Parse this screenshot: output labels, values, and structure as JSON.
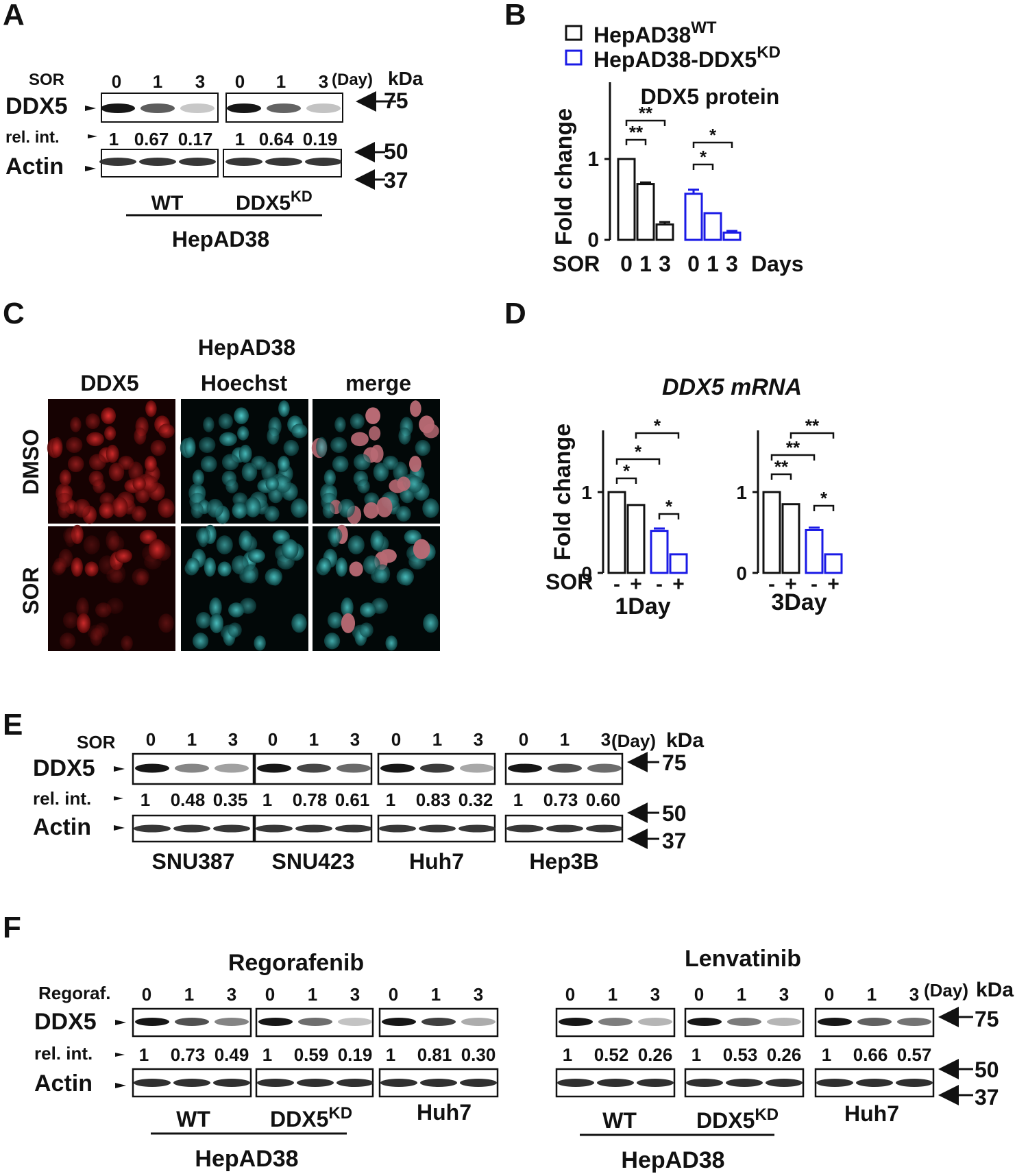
{
  "panels": {
    "A": {
      "letter": "A",
      "treatment_label": "SOR",
      "days": [
        "0",
        "1",
        "3",
        "0",
        "1",
        "3"
      ],
      "day_unit": "(Day)",
      "kda_label": "kDa",
      "protein_label": "DDX5",
      "relint_label": "rel. int.",
      "relint_values": [
        "1",
        "0.67",
        "0.17",
        "1",
        "0.64",
        "0.19"
      ],
      "loading_label": "Actin",
      "markers": [
        "75",
        "50",
        "37"
      ],
      "group_wt": "WT",
      "group_kd": "DDX5",
      "group_kd_sup": "KD",
      "cell_line": "HepAD38",
      "ddx5_band_intensity": [
        1,
        0.67,
        0.17,
        1,
        0.64,
        0.19
      ]
    },
    "B": {
      "letter": "B",
      "legend": [
        {
          "name": "HepAD38",
          "sup": "WT",
          "color": "#111111"
        },
        {
          "name": "HepAD38-DDX5",
          "sup": "KD",
          "color": "#1a1ae6"
        }
      ],
      "title": "DDX5 protein",
      "ylabel": "Fold change",
      "yticks": [
        "0",
        "1"
      ],
      "xprefix": "SOR",
      "xsuffix": "Days",
      "xcats": [
        "0",
        "1",
        "3",
        "0",
        "1",
        "3"
      ],
      "sig": [
        "**",
        "**",
        "*",
        "*"
      ]
    },
    "C": {
      "letter": "C",
      "cell_line": "HepAD38",
      "columns": [
        "DDX5",
        "Hoechst",
        "merge"
      ],
      "rows": [
        "DMSO",
        "SOR"
      ]
    },
    "D": {
      "letter": "D",
      "title": "DDX5 mRNA",
      "ylabel": "Fold change",
      "yticks": [
        "0",
        "1"
      ],
      "xprefix": "SOR",
      "signs": [
        "-",
        "+",
        "-",
        "+"
      ],
      "groups": [
        "1Day",
        "3Day"
      ],
      "sig_1day": [
        "*",
        "*",
        "*",
        "*"
      ],
      "sig_3day": [
        "**",
        "**",
        "**",
        "*"
      ]
    },
    "E": {
      "letter": "E",
      "treatment_label": "SOR",
      "days": [
        "0",
        "1",
        "3"
      ],
      "day_unit": "(Day)",
      "kda_label": "kDa",
      "protein_label": "DDX5",
      "relint_label": "rel. int.",
      "loading_label": "Actin",
      "markers": [
        "75",
        "50",
        "37"
      ],
      "lines": [
        {
          "name": "SNU387",
          "relint": [
            "1",
            "0.48",
            "0.35"
          ],
          "intensity": [
            1,
            0.48,
            0.35
          ]
        },
        {
          "name": "SNU423",
          "relint": [
            "1",
            "0.78",
            "0.61"
          ],
          "intensity": [
            1,
            0.78,
            0.61
          ]
        },
        {
          "name": "Huh7",
          "relint": [
            "1",
            "0.83",
            "0.32"
          ],
          "intensity": [
            1,
            0.83,
            0.32
          ]
        },
        {
          "name": "Hep3B",
          "relint": [
            "1",
            "0.73",
            "0.60"
          ],
          "intensity": [
            1,
            0.73,
            0.6
          ]
        }
      ]
    },
    "F": {
      "letter": "F",
      "left_title": "Regorafenib",
      "right_title": "Lenvatinib",
      "treatment_label": "Regoraf.",
      "days": [
        "0",
        "1",
        "3"
      ],
      "day_unit": "(Day)",
      "kda_label": "kDa",
      "protein_label": "DDX5",
      "relint_label": "rel. int.",
      "loading_label": "Actin",
      "markers": [
        "75",
        "50",
        "37"
      ],
      "group_wt": "WT",
      "group_kd": "DDX5",
      "group_kd_sup": "KD",
      "group_huh7": "Huh7",
      "cell_line": "HepAD38",
      "left_blots": [
        {
          "relint": [
            "1",
            "0.73",
            "0.49"
          ],
          "intensity": [
            1,
            0.73,
            0.49
          ]
        },
        {
          "relint": [
            "1",
            "0.59",
            "0.19"
          ],
          "intensity": [
            1,
            0.59,
            0.19
          ]
        },
        {
          "relint": [
            "1",
            "0.81",
            "0.30"
          ],
          "intensity": [
            1,
            0.81,
            0.3
          ]
        }
      ],
      "right_blots": [
        {
          "relint": [
            "1",
            "0.52",
            "0.26"
          ],
          "intensity": [
            1,
            0.52,
            0.26
          ]
        },
        {
          "relint": [
            "1",
            "0.53",
            "0.26"
          ],
          "intensity": [
            1,
            0.53,
            0.26
          ]
        },
        {
          "relint": [
            "1",
            "0.66",
            "0.57"
          ],
          "intensity": [
            1,
            0.66,
            0.57
          ]
        }
      ]
    }
  },
  "chart_data": [
    {
      "type": "bar",
      "title": "DDX5 protein",
      "ylabel": "Fold change",
      "xlabel": "Days",
      "categories": [
        "0",
        "1",
        "3"
      ],
      "series": [
        {
          "name": "HepAD38WT",
          "values": [
            1.0,
            0.69,
            0.19
          ],
          "errors": [
            0.0,
            0.02,
            0.03
          ]
        },
        {
          "name": "HepAD38-DDX5KD",
          "values": [
            0.57,
            0.33,
            0.09
          ],
          "errors": [
            0.05,
            0.0,
            0.02
          ]
        }
      ],
      "ylim": [
        0,
        1.5
      ]
    },
    {
      "type": "bar",
      "title": "DDX5 mRNA",
      "ylabel": "Fold change",
      "categories": [
        "-",
        "+",
        "-",
        "+"
      ],
      "groups": [
        {
          "name": "1Day",
          "values": [
            1.0,
            0.84,
            0.52,
            0.23
          ],
          "errors": [
            0,
            0,
            0.03,
            0
          ],
          "colors": [
            "#111111",
            "#111111",
            "#1a1ae6",
            "#1a1ae6"
          ]
        },
        {
          "name": "3Day",
          "values": [
            1.0,
            0.85,
            0.53,
            0.23
          ],
          "errors": [
            0,
            0,
            0.03,
            0
          ],
          "colors": [
            "#111111",
            "#111111",
            "#1a1ae6",
            "#1a1ae6"
          ]
        }
      ],
      "ylim": [
        0,
        1.8
      ]
    }
  ]
}
